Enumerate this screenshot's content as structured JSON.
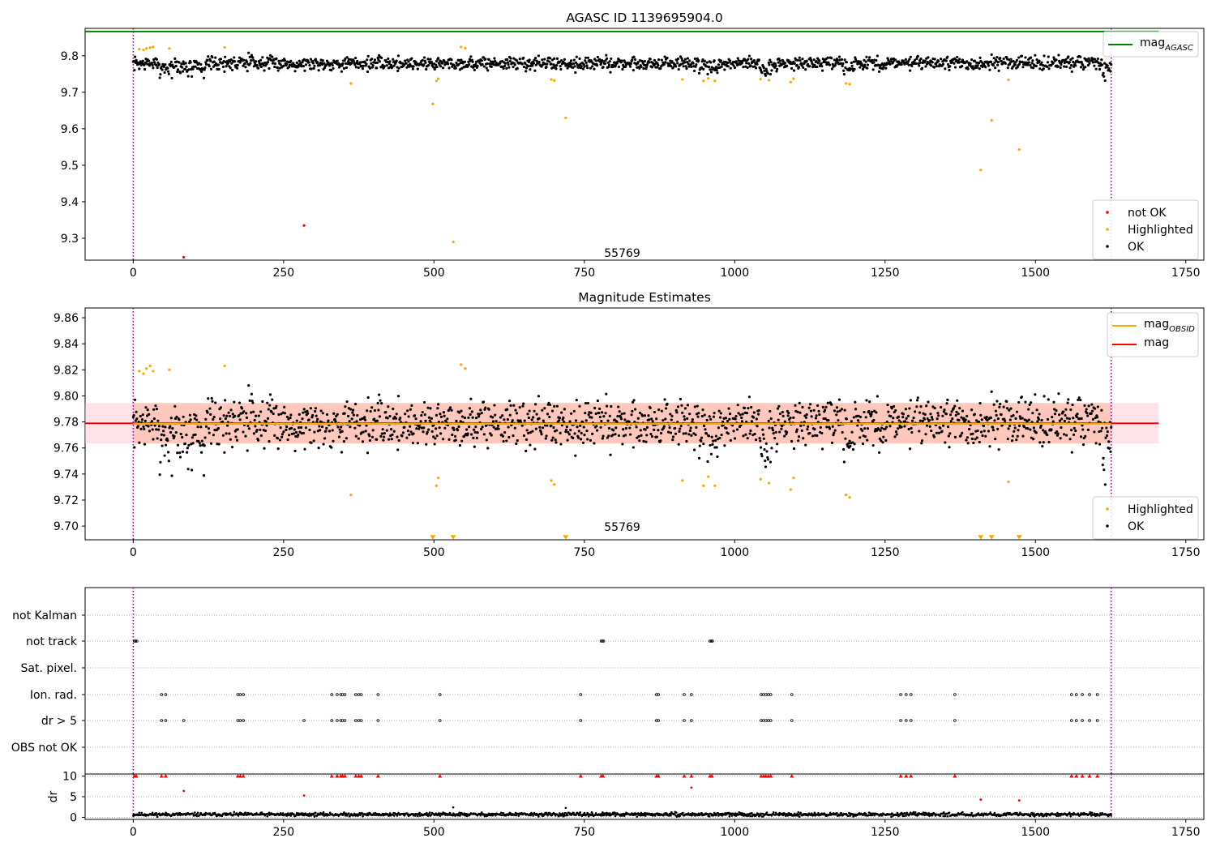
{
  "chart_data": [
    {
      "type": "scatter",
      "title": "AGASC ID 1139695904.0",
      "xlabel": "",
      "ylabel": "",
      "xlim": [
        -80,
        1780
      ],
      "ylim": [
        9.24,
        9.875
      ],
      "xticks": [
        "0",
        "250",
        "500",
        "750",
        "1000",
        "1250",
        "1500",
        "1750"
      ],
      "xtick_values": [
        0,
        250,
        500,
        750,
        1000,
        1250,
        1500,
        1750
      ],
      "yticks": [
        "9.3",
        "9.4",
        "9.5",
        "9.6",
        "9.7",
        "9.8"
      ],
      "ytick_values": [
        9.3,
        9.4,
        9.5,
        9.6,
        9.7,
        9.8
      ],
      "vlines": [
        0,
        1626
      ],
      "annotation": {
        "text": "55769",
        "x": 813,
        "y": 9.26
      },
      "reference_line": {
        "name": "mag",
        "sub": "AGASC",
        "y": 9.8665,
        "x_range": [
          -80,
          1705
        ],
        "color": "#008000"
      },
      "legend_line": [
        {
          "label": "mag",
          "sub": "AGASC",
          "color": "#008000"
        }
      ],
      "legend_scatter": [
        {
          "label": "not OK",
          "color": "#ff0000"
        },
        {
          "label": "Highlighted",
          "color": "#ffa500"
        },
        {
          "label": "OK",
          "color": "#000000"
        }
      ],
      "series": [
        {
          "name": "Highlighted",
          "color": "#ffa500",
          "points": [
            [
              10,
              9.818
            ],
            [
              17,
              9.816
            ],
            [
              22,
              9.82
            ],
            [
              28,
              9.822
            ],
            [
              33,
              9.824
            ],
            [
              60,
              9.82
            ],
            [
              152,
              9.823
            ],
            [
              362,
              9.724
            ],
            [
              498,
              9.668
            ],
            [
              504,
              9.731
            ],
            [
              507,
              9.737
            ],
            [
              532,
              9.29
            ],
            [
              545,
              9.824
            ],
            [
              552,
              9.821
            ],
            [
              695,
              9.735
            ],
            [
              700,
              9.732
            ],
            [
              719,
              9.63
            ],
            [
              913,
              9.735
            ],
            [
              948,
              9.731
            ],
            [
              956,
              9.738
            ],
            [
              967,
              9.731
            ],
            [
              1043,
              9.736
            ],
            [
              1057,
              9.733
            ],
            [
              1093,
              9.728
            ],
            [
              1098,
              9.737
            ],
            [
              1185,
              9.724
            ],
            [
              1191,
              9.722
            ],
            [
              1409,
              9.487
            ],
            [
              1427,
              9.623
            ],
            [
              1455,
              9.734
            ],
            [
              1473,
              9.543
            ]
          ]
        },
        {
          "name": "not OK",
          "color": "#ff0000",
          "points": [
            [
              84,
              9.248
            ],
            [
              284,
              9.335
            ]
          ]
        },
        {
          "name": "OK",
          "color": "#000000",
          "generated": {
            "n": 1620,
            "x_range": [
              0,
              1626
            ],
            "mean": 9.779,
            "spread": 0.013,
            "seed": 7,
            "dips": [
              [
                40,
                120,
                -0.02
              ],
              [
                175,
                200,
                0.018
              ],
              [
                940,
                975,
                -0.02
              ],
              [
                1040,
                1070,
                -0.022
              ],
              [
                1180,
                1200,
                -0.02
              ],
              [
                1610,
                1626,
                -0.03
              ]
            ]
          }
        }
      ]
    },
    {
      "type": "scatter",
      "title": "Magnitude Estimates",
      "xlabel": "",
      "ylabel": "",
      "xlim": [
        -80,
        1780
      ],
      "ylim": [
        9.6895,
        9.8675
      ],
      "xticks": [
        "0",
        "250",
        "500",
        "750",
        "1000",
        "1250",
        "1500",
        "1750"
      ],
      "xtick_values": [
        0,
        250,
        500,
        750,
        1000,
        1250,
        1500,
        1750
      ],
      "yticks": [
        "9.70",
        "9.72",
        "9.74",
        "9.76",
        "9.78",
        "9.80",
        "9.82",
        "9.84",
        "9.86"
      ],
      "ytick_values": [
        9.7,
        9.72,
        9.74,
        9.76,
        9.78,
        9.8,
        9.82,
        9.84,
        9.86
      ],
      "vlines": [
        0,
        1626
      ],
      "annotation": {
        "text": "55769",
        "x": 813,
        "y": 9.6995
      },
      "bands": [
        {
          "y": [
            9.7635,
            9.7945
          ],
          "x_range": [
            -80,
            1705
          ],
          "color": "#ffc0cb",
          "opacity": 0.45
        },
        {
          "y": [
            9.7635,
            9.7945
          ],
          "x_range": [
            0,
            1626
          ],
          "color": "#ffa07a",
          "opacity": 0.4
        }
      ],
      "lines": [
        {
          "name": "mag",
          "y": 9.779,
          "x_range": [
            -80,
            1705
          ],
          "color": "#ff0000"
        },
        {
          "name": "mag_OBSID",
          "y": 9.7785,
          "x_range": [
            0,
            1626
          ],
          "color": "#ffa500"
        }
      ],
      "legend_line": [
        {
          "label": "mag",
          "sub": "OBSID",
          "color": "#ffa500"
        },
        {
          "label": "mag",
          "sub": "",
          "color": "#ff0000"
        }
      ],
      "legend_scatter": [
        {
          "label": "Highlighted",
          "color": "#ffa500"
        },
        {
          "label": "OK",
          "color": "#000000"
        }
      ],
      "lower_limit_markers": {
        "color": "#ffa500",
        "y": 9.6915,
        "x": [
          498,
          532,
          719,
          1409,
          1427,
          1473
        ]
      },
      "series": [
        {
          "name": "Highlighted",
          "color": "#ffa500",
          "points": [
            [
              10,
              9.819
            ],
            [
              17,
              9.817
            ],
            [
              22,
              9.821
            ],
            [
              28,
              9.823
            ],
            [
              33,
              9.819
            ],
            [
              60,
              9.82
            ],
            [
              152,
              9.823
            ],
            [
              362,
              9.724
            ],
            [
              504,
              9.731
            ],
            [
              507,
              9.737
            ],
            [
              545,
              9.824
            ],
            [
              552,
              9.821
            ],
            [
              695,
              9.735
            ],
            [
              700,
              9.732
            ],
            [
              913,
              9.735
            ],
            [
              948,
              9.731
            ],
            [
              956,
              9.738
            ],
            [
              967,
              9.731
            ],
            [
              1043,
              9.736
            ],
            [
              1057,
              9.733
            ],
            [
              1093,
              9.728
            ],
            [
              1098,
              9.737
            ],
            [
              1185,
              9.724
            ],
            [
              1191,
              9.722
            ],
            [
              1455,
              9.734
            ]
          ]
        },
        {
          "name": "OK",
          "color": "#000000",
          "generated": {
            "n": 1620,
            "x_range": [
              0,
              1626
            ],
            "mean": 9.779,
            "spread": 0.013,
            "seed": 7,
            "dips": [
              [
                40,
                120,
                -0.02
              ],
              [
                175,
                200,
                0.018
              ],
              [
                940,
                975,
                -0.02
              ],
              [
                1040,
                1070,
                -0.022
              ],
              [
                1180,
                1200,
                -0.02
              ],
              [
                1610,
                1626,
                -0.03
              ]
            ]
          }
        }
      ]
    },
    {
      "type": "scatter",
      "title": "",
      "xlabel": "",
      "ylabel": "",
      "xlim": [
        -80,
        1780
      ],
      "categories": [
        "not Kalman",
        "not track",
        "Sat. pixel.",
        "Ion. rad.",
        "dr > 5",
        "OBS not OK"
      ],
      "vlines": [
        0,
        1626
      ],
      "flags": [
        {
          "category": "not Kalman",
          "x": []
        },
        {
          "category": "not track",
          "x": [
            2,
            4,
            6,
            778,
            780,
            782,
            959,
            961,
            963
          ]
        },
        {
          "category": "Sat. pixel.",
          "x": []
        },
        {
          "category": "Ion. rad.",
          "x": [
            47,
            54,
            174,
            178,
            183,
            330,
            339,
            345,
            348,
            352,
            370,
            375,
            379,
            407,
            510,
            744,
            870,
            873,
            916,
            928,
            1044,
            1048,
            1052,
            1056,
            1060,
            1095,
            1276,
            1285,
            1293,
            1366,
            1560,
            1568,
            1578,
            1590,
            1603
          ]
        },
        {
          "category": "dr > 5",
          "x": [
            47,
            54,
            84,
            174,
            178,
            183,
            284,
            330,
            339,
            345,
            348,
            352,
            370,
            375,
            379,
            407,
            510,
            744,
            870,
            873,
            916,
            928,
            1044,
            1048,
            1052,
            1056,
            1060,
            1095,
            1276,
            1285,
            1293,
            1366,
            1560,
            1568,
            1578,
            1590,
            1603
          ]
        },
        {
          "category": "OBS not OK",
          "x": []
        }
      ]
    },
    {
      "type": "scatter",
      "title": "",
      "xlabel": "",
      "ylabel": "dr",
      "xlim": [
        -80,
        1780
      ],
      "ylim": [
        -0.5,
        10.5
      ],
      "yticks": [
        "0",
        "5",
        "10"
      ],
      "ytick_values": [
        0,
        5,
        10
      ],
      "xticks": [
        "0",
        "250",
        "500",
        "750",
        "1000",
        "1250",
        "1500",
        "1750"
      ],
      "xtick_values": [
        0,
        250,
        500,
        750,
        1000,
        1250,
        1500,
        1750
      ],
      "vlines": [
        0,
        1626
      ],
      "clip_markers": {
        "color": "#ff0000",
        "y": 10,
        "x": [
          2,
          5,
          47,
          54,
          174,
          178,
          183,
          330,
          339,
          345,
          348,
          352,
          370,
          375,
          379,
          407,
          510,
          744,
          778,
          781,
          870,
          873,
          916,
          928,
          959,
          962,
          1044,
          1048,
          1052,
          1056,
          1060,
          1095,
          1276,
          1285,
          1293,
          1366,
          1560,
          1568,
          1578,
          1590,
          1603
        ]
      },
      "series": [
        {
          "name": "not OK",
          "color": "#ff0000",
          "points": [
            [
              84,
              6.4
            ],
            [
              284,
              5.3
            ],
            [
              928,
              7.2
            ],
            [
              1409,
              4.3
            ],
            [
              1473,
              4.1
            ]
          ]
        },
        {
          "name": "OK",
          "color": "#000000",
          "points_extra": [
            [
              532,
              2.4
            ],
            [
              719,
              2.3
            ]
          ],
          "generated": {
            "n": 1620,
            "x_range": [
              0,
              1626
            ],
            "mean": 0.7,
            "spread": 0.3,
            "seed": 11
          }
        }
      ]
    }
  ]
}
